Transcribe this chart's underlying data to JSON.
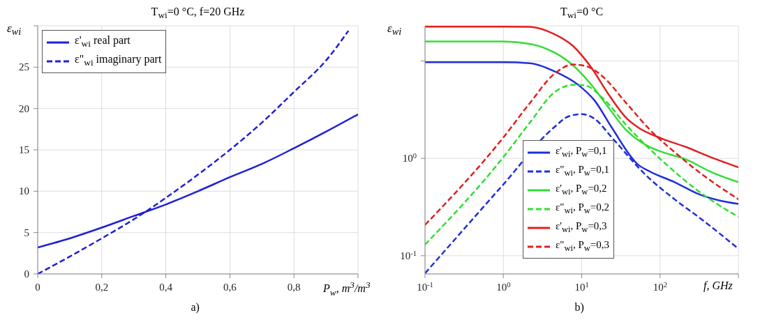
{
  "chart_data": [
    {
      "type": "line",
      "title": "T$_{wi}$=0 °C, f=20 GHz",
      "xlabel": "P$_{w}$, m$^{3}$/m$^{3}$",
      "ylabel": "ε$_{wi}$",
      "xlim": [
        0,
        1
      ],
      "xticks": [
        {
          "value": 0,
          "label": "0"
        },
        {
          "value": 0.2,
          "label": "0,2"
        },
        {
          "value": 0.4,
          "label": "0,4"
        },
        {
          "value": 0.6,
          "label": "0,6"
        },
        {
          "value": 0.8,
          "label": "0,8"
        },
        {
          "value": 1,
          "label": null
        }
      ],
      "ylim": [
        0,
        30
      ],
      "yticks": [
        0,
        5,
        10,
        15,
        20,
        25,
        {
          "value": 30,
          "label": null
        }
      ],
      "grid": true,
      "legend": "top left",
      "annotations": [
        "a)"
      ],
      "series": [
        {
          "name": "ε'$_{wi}$  real part",
          "color": "#1f1fd6",
          "line_style": "solid",
          "x": [
            0,
            0.1,
            0.2,
            0.3,
            0.4,
            0.5,
            0.6,
            0.7,
            0.8,
            0.9,
            1.0
          ],
          "values": [
            3.2,
            4.3,
            5.6,
            7.0,
            8.4,
            10.0,
            11.7,
            13.3,
            15.2,
            17.2,
            19.3
          ]
        },
        {
          "name": "ε\"$_{wi}$ imaginary part",
          "color": "#1f1fd6",
          "line_style": "dashed",
          "x": [
            0,
            0.1,
            0.2,
            0.3,
            0.4,
            0.5,
            0.6,
            0.7,
            0.8,
            0.9,
            0.97
          ],
          "values": [
            0,
            2.1,
            4.3,
            6.6,
            9.2,
            12.0,
            15.0,
            18.3,
            22.0,
            25.8,
            29.4
          ]
        }
      ]
    },
    {
      "type": "line",
      "title": "T$_{wi}$=0 °C",
      "xlabel": "f, GHz",
      "ylabel": "ε$_{wi}$",
      "log": "xy",
      "xlim": [
        0.1,
        1000
      ],
      "xticks": [
        {
          "value": 0.1,
          "label": "10$^{-1}$"
        },
        {
          "value": 1,
          "label": "10$^{0}$"
        },
        {
          "value": 10,
          "label": "10$^{1}$"
        },
        {
          "value": 100,
          "label": "10$^{2}$"
        },
        {
          "value": 1000,
          "label": null
        }
      ],
      "ylim": [
        0.065,
        23
      ],
      "yticks": [
        {
          "value": 0.1,
          "label": "10$^{-1}$"
        },
        {
          "value": 1,
          "label": "10$^{0}$"
        },
        {
          "value": 10,
          "label": null
        }
      ],
      "grid": true,
      "legend": "bottom",
      "annotations": [
        "b)"
      ],
      "series": [
        {
          "name": "ε'$_{wi}$, P$_{w}$=0,1",
          "color": "#1f2fd8",
          "line_style": "solid",
          "x": [
            0.1,
            1,
            2.18,
            4.4,
            9.0,
            14.7,
            24.2,
            52.7,
            75,
            153,
            310,
            1000
          ],
          "values": [
            9.7,
            9.7,
            9.5,
            7.9,
            5.7,
            3.9,
            2.07,
            0.86,
            0.73,
            0.57,
            0.43,
            0.34
          ]
        },
        {
          "name": "ε\"$_{wi}$, P$_{w}$=0,1",
          "color": "#1f2fd8",
          "line_style": "dashed",
          "x": [
            0.1,
            1,
            4.4,
            6.8,
            10,
            14.7,
            24.2,
            65,
            153,
            310,
            1000
          ],
          "values": [
            0.066,
            0.54,
            2.07,
            2.7,
            2.85,
            2.54,
            1.64,
            0.68,
            0.38,
            0.25,
            0.118
          ]
        },
        {
          "name": "ε'$_{wi}$, P$_{w}$=0,2",
          "color": "#33dd33",
          "line_style": "solid",
          "x": [
            0.1,
            1,
            2.18,
            4.4,
            7.3,
            12.8,
            21,
            37,
            65,
            107,
            218,
            440,
            1000
          ],
          "values": [
            15.9,
            15.9,
            15.0,
            12.3,
            9.4,
            5.9,
            3.5,
            1.95,
            1.38,
            1.16,
            0.97,
            0.73,
            0.57
          ]
        },
        {
          "name": "ε\"$_{wi}$, P$_{w}$=0,2",
          "color": "#33dd33",
          "line_style": "dashed",
          "x": [
            0.1,
            1,
            2.18,
            4.4,
            7.8,
            11.1,
            18.3,
            37,
            75,
            153,
            310,
            1000
          ],
          "values": [
            0.13,
            1.03,
            2.33,
            4.7,
            5.7,
            5.6,
            4.2,
            2.2,
            1.23,
            0.73,
            0.46,
            0.25
          ]
        },
        {
          "name": "ε'$_{wi}$, P$_{w}$=0,3",
          "color": "#e02020",
          "line_style": "solid",
          "x": [
            0.1,
            1,
            2.18,
            4.4,
            7.8,
            12.8,
            22.6,
            37,
            52.7,
            107,
            218,
            440,
            1000
          ],
          "values": [
            22.5,
            22.5,
            22.4,
            19,
            14.2,
            8.9,
            4.4,
            2.6,
            2.07,
            1.59,
            1.3,
            1.03,
            0.81
          ]
        },
        {
          "name": "ε\"$_{wi}$, P$_{w}$=0,3",
          "color": "#e02020",
          "line_style": "dashed",
          "x": [
            0.1,
            1,
            2.18,
            4.4,
            7.8,
            11.1,
            18.3,
            37,
            75,
            153,
            310,
            1000
          ],
          "values": [
            0.207,
            1.64,
            3.7,
            7.3,
            9.2,
            8.9,
            7.0,
            3.7,
            1.95,
            1.16,
            0.73,
            0.38
          ]
        }
      ]
    }
  ]
}
